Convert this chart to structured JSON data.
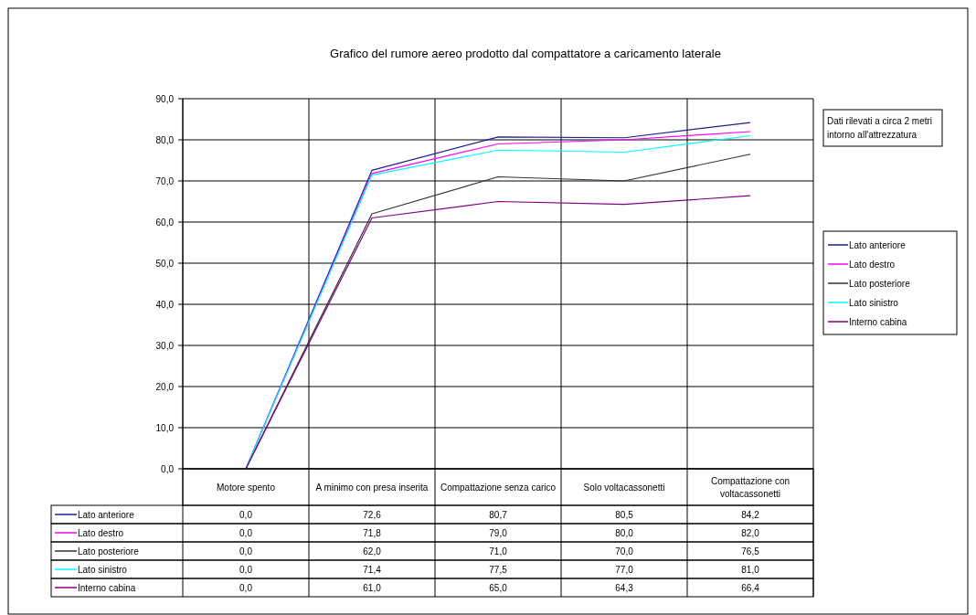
{
  "chart_data": {
    "type": "line",
    "title": "Grafico del rumore aereo prodotto dal compattatore a caricamento laterale",
    "categories": [
      "Motore spento",
      "A minimo con presa inserita",
      "Compattazione senza carico",
      "Solo voltacassonetti",
      "Compattazione con voltacassonetti"
    ],
    "series": [
      {
        "name": "Lato anteriore",
        "color": "#1f1f8f",
        "values": [
          0,
          72.6,
          80.7,
          80.5,
          84.2
        ],
        "value_labels": [
          "0,0",
          "72,6",
          "80,7",
          "80,5",
          "84,2"
        ]
      },
      {
        "name": "Lato destro",
        "color": "#ff00ff",
        "values": [
          0,
          71.8,
          79,
          80,
          82
        ],
        "value_labels": [
          "0,0",
          "71,8",
          "79,0",
          "80,0",
          "82,0"
        ]
      },
      {
        "name": "Lato posteriore",
        "color": "#333333",
        "values": [
          0,
          62,
          71,
          70,
          76.5
        ],
        "value_labels": [
          "0,0",
          "62,0",
          "71,0",
          "70,0",
          "76,5"
        ]
      },
      {
        "name": "Lato sinistro",
        "color": "#00ffff",
        "values": [
          0,
          71.4,
          77.5,
          77,
          81
        ],
        "value_labels": [
          "0,0",
          "71,4",
          "77,5",
          "77,0",
          "81,0"
        ]
      },
      {
        "name": "Interno cabina",
        "color": "#800080",
        "values": [
          0,
          61,
          65,
          64.3,
          66.4
        ],
        "value_labels": [
          "0,0",
          "61,0",
          "65,0",
          "64,3",
          "66,4"
        ]
      }
    ],
    "ylim": [
      0,
      90
    ],
    "yticks": [
      {
        "value": 0,
        "label": "0,0"
      },
      {
        "value": 10,
        "label": "10,0"
      },
      {
        "value": 20,
        "label": "20,0"
      },
      {
        "value": 30,
        "label": "30,0"
      },
      {
        "value": 40,
        "label": "40,0"
      },
      {
        "value": 50,
        "label": "50,0"
      },
      {
        "value": 60,
        "label": "60,0"
      },
      {
        "value": 70,
        "label": "70,0"
      },
      {
        "value": 80,
        "label": "80,0"
      },
      {
        "value": 90,
        "label": "90,0"
      }
    ],
    "grid": true,
    "legend": "right",
    "marker": "none",
    "line_style": "solid",
    "annotations": [
      "Dati rilevati  a circa 2 metri intorno all'attrezzatura"
    ]
  }
}
